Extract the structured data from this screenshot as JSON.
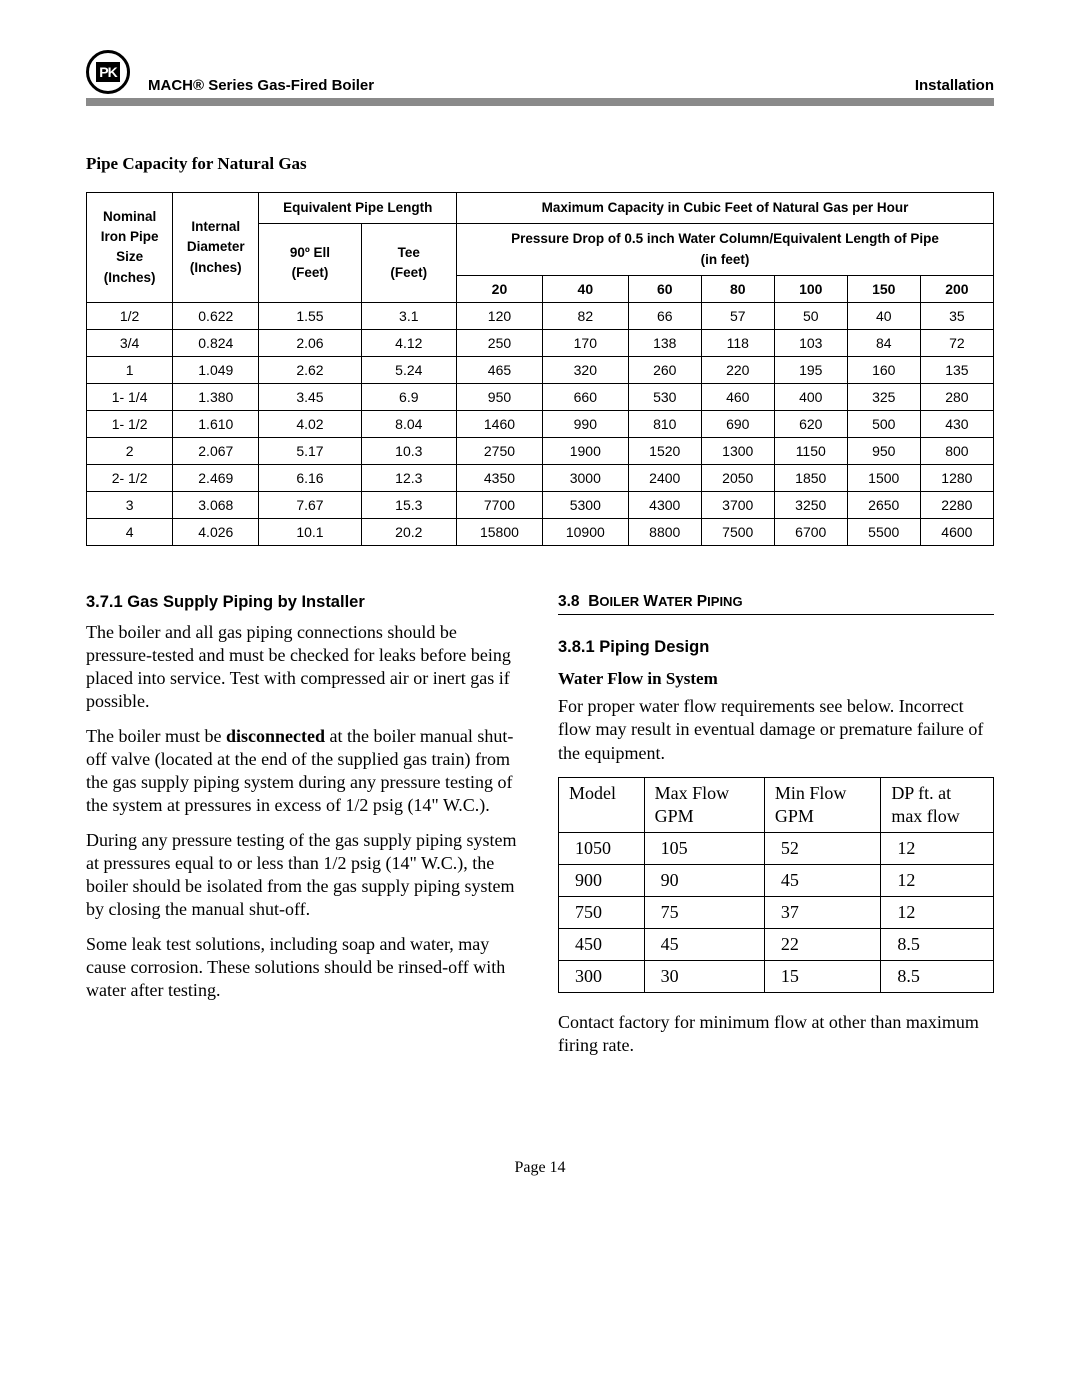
{
  "header": {
    "title_left": "MACH®  Series Gas-Fired Boiler",
    "title_right": "Installation",
    "logo_text": "PK"
  },
  "table1": {
    "caption": "Pipe Capacity for Natural Gas",
    "col_heads": {
      "nominal": "Nominal Iron Pipe Size (Inches)",
      "internal": "Internal Diameter (Inches)",
      "equiv": "Equivalent Pipe Length",
      "maxcap": "Maximum Capacity in Cubic Feet of Natural Gas per Hour",
      "pressure_drop": "Pressure Drop of 0.5 inch Water Column/Equivalent Length of Pipe (in feet)",
      "ell": "90º Ell (Feet)",
      "tee": "Tee (Feet)",
      "lens": [
        "20",
        "40",
        "60",
        "80",
        "100",
        "150",
        "200"
      ]
    },
    "rows": [
      {
        "size": "1/2",
        "id": "0.622",
        "ell": "1.55",
        "tee": "3.1",
        "v": [
          "120",
          "82",
          "66",
          "57",
          "50",
          "40",
          "35"
        ]
      },
      {
        "size": "3/4",
        "id": "0.824",
        "ell": "2.06",
        "tee": "4.12",
        "v": [
          "250",
          "170",
          "138",
          "118",
          "103",
          "84",
          "72"
        ]
      },
      {
        "size": "1",
        "id": "1.049",
        "ell": "2.62",
        "tee": "5.24",
        "v": [
          "465",
          "320",
          "260",
          "220",
          "195",
          "160",
          "135"
        ]
      },
      {
        "size": "1- 1/4",
        "id": "1.380",
        "ell": "3.45",
        "tee": "6.9",
        "v": [
          "950",
          "660",
          "530",
          "460",
          "400",
          "325",
          "280"
        ]
      },
      {
        "size": "1- 1/2",
        "id": "1.610",
        "ell": "4.02",
        "tee": "8.04",
        "v": [
          "1460",
          "990",
          "810",
          "690",
          "620",
          "500",
          "430"
        ]
      },
      {
        "size": "2",
        "id": "2.067",
        "ell": "5.17",
        "tee": "10.3",
        "v": [
          "2750",
          "1900",
          "1520",
          "1300",
          "1150",
          "950",
          "800"
        ]
      },
      {
        "size": "2- 1/2",
        "id": "2.469",
        "ell": "6.16",
        "tee": "12.3",
        "v": [
          "4350",
          "3000",
          "2400",
          "2050",
          "1850",
          "1500",
          "1280"
        ]
      },
      {
        "size": "3",
        "id": "3.068",
        "ell": "7.67",
        "tee": "15.3",
        "v": [
          "7700",
          "5300",
          "4300",
          "3700",
          "3250",
          "2650",
          "2280"
        ]
      },
      {
        "size": "4",
        "id": "4.026",
        "ell": "10.1",
        "tee": "20.2",
        "v": [
          "15800",
          "10900",
          "8800",
          "7500",
          "6700",
          "5500",
          "4600"
        ]
      }
    ]
  },
  "left": {
    "h": "3.7.1  Gas Supply Piping by Installer",
    "p1": "The boiler and all gas piping connections should be pressure-tested and must be checked for leaks before being placed into service.  Test with compressed air or inert gas if possible.",
    "p2a": "The boiler must be ",
    "p2b": "disconnected",
    "p2c": " at the boiler manual shut-off valve (located at the end of the supplied gas train) from the gas supply piping system during any pressure testing of the system at pressures in excess of 1/2 psig (14\" W.C.).",
    "p3": "During any pressure testing of the gas supply piping system at pressures equal to or less than 1/2 psig (14\" W.C.), the boiler should be isolated from the gas supply piping system by closing the manual shut-off.",
    "p4": "Some leak test solutions, including soap and water, may cause corrosion.  These solutions should be rinsed-off with water after testing."
  },
  "right": {
    "h1_num": "3.8",
    "h1_txt": "Boiler Water Piping",
    "h2": "3.8.1  Piping Design",
    "sub": "Water Flow in System",
    "p1": "For proper water flow requirements see below.  Incorrect flow may result in eventual damage or premature failure of the equipment.",
    "flow_head": [
      "Model",
      "Max Flow GPM",
      "Min Flow GPM",
      "DP ft. at max flow"
    ],
    "flow_rows": [
      [
        "1050",
        "105",
        "52",
        "12"
      ],
      [
        "900",
        "90",
        "45",
        "12"
      ],
      [
        "750",
        "75",
        "37",
        "12"
      ],
      [
        "450",
        "45",
        "22",
        "8.5"
      ],
      [
        "300",
        "30",
        "15",
        "8.5"
      ]
    ],
    "p2": "Contact factory for minimum flow at other than maximum firing rate."
  },
  "footer": "Page  14"
}
